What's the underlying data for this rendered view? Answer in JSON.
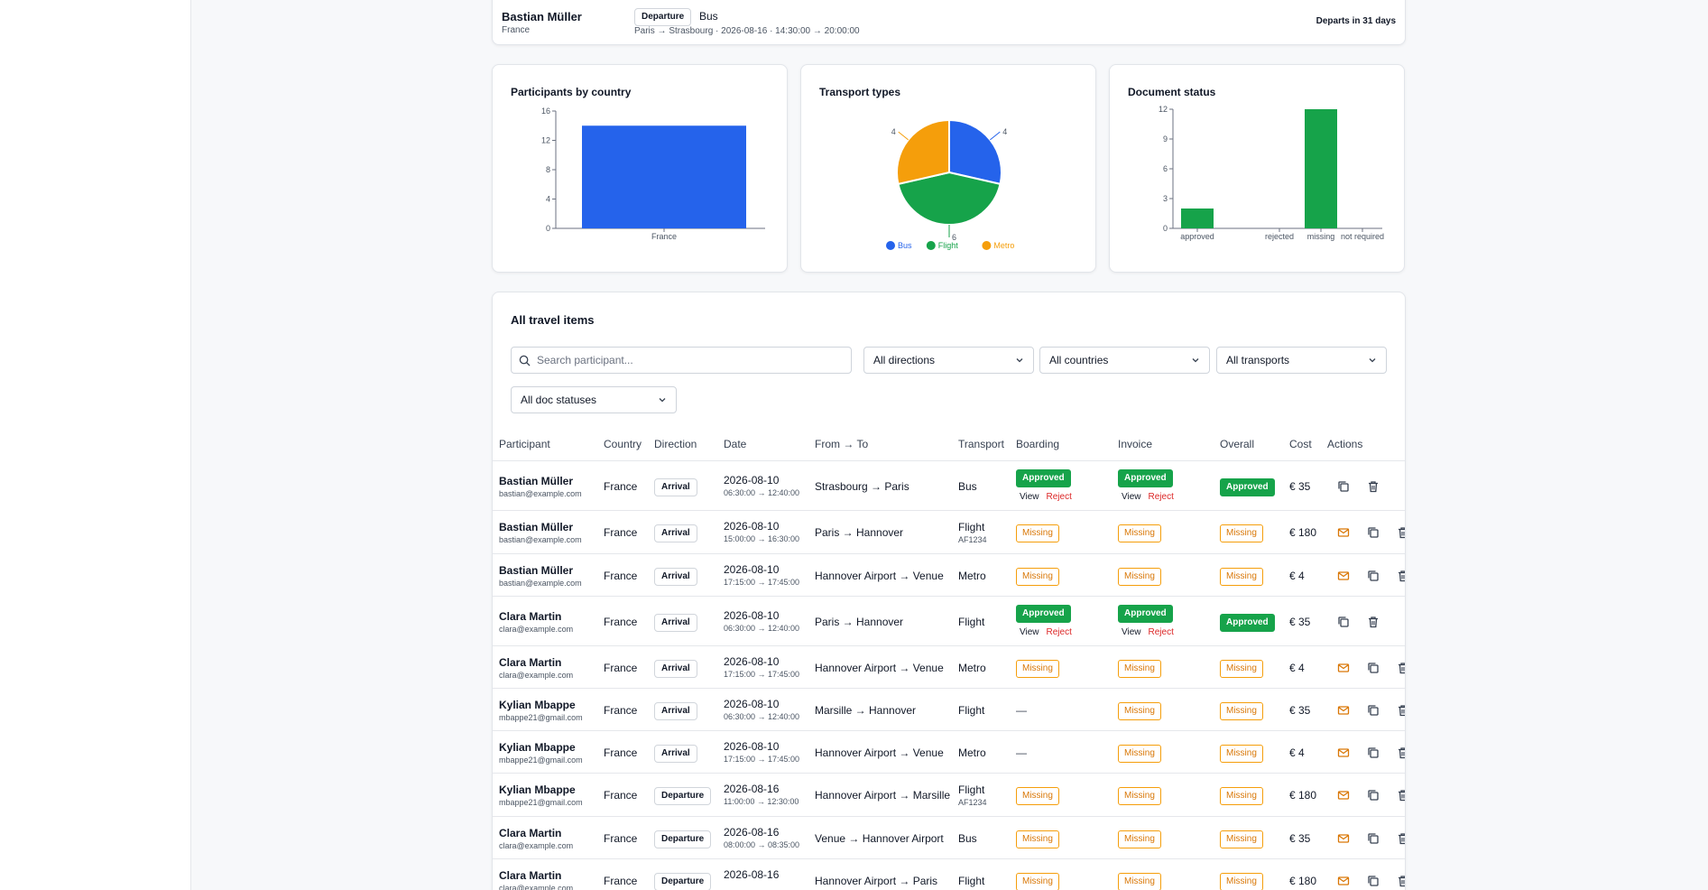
{
  "top_card": {
    "participant": "Bastian Müller",
    "country": "France",
    "direction": "Departure",
    "transport": "Bus",
    "route": "Paris → Strasbourg · 2026-08-16 · 14:30:00 → 20:00:00",
    "departs": "Departs in 31 days"
  },
  "charts": {
    "country": {
      "title": "Participants by country",
      "chart_data": {
        "type": "bar",
        "categories": [
          "France"
        ],
        "values": [
          14
        ],
        "ylim": [
          0,
          16
        ],
        "yticks": [
          "0",
          "4",
          "8",
          "12",
          "16"
        ],
        "color": "#2563eb"
      }
    },
    "transport": {
      "title": "Transport types",
      "chart_data": {
        "type": "pie",
        "series": [
          {
            "name": "Bus",
            "value": 4,
            "color": "#2563eb"
          },
          {
            "name": "Flight",
            "value": 6,
            "color": "#16a34a"
          },
          {
            "name": "Metro",
            "value": 4,
            "color": "#f59e0b"
          }
        ],
        "labels": [
          "4",
          "6",
          "4"
        ]
      }
    },
    "docs": {
      "title": "Document status",
      "chart_data": {
        "type": "bar",
        "categories": [
          "approved",
          "rejected",
          "missing",
          "not_required"
        ],
        "values": [
          2,
          0,
          12,
          0
        ],
        "ylim": [
          0,
          12
        ],
        "yticks": [
          "0",
          "3",
          "6",
          "9",
          "12"
        ],
        "color": "#16a34a"
      }
    }
  },
  "items": {
    "title": "All travel items",
    "search_placeholder": "Search participant...",
    "filters": {
      "directions": "All directions",
      "countries": "All countries",
      "transports": "All transports",
      "doc_statuses": "All doc statuses"
    },
    "columns": {
      "participant": "Participant",
      "country": "Country",
      "direction": "Direction",
      "date": "Date",
      "route": "From → To",
      "transport": "Transport",
      "boarding": "Boarding",
      "invoice": "Invoice",
      "overall": "Overall",
      "cost": "Cost",
      "actions": "Actions"
    },
    "view_label": "View",
    "reject_label": "Reject",
    "rows": [
      {
        "name": "Bastian Müller",
        "email": "bastian@example.com",
        "country": "France",
        "direction": "Arrival",
        "date": "2026-08-10",
        "time": "06:30:00 → 12:40:00",
        "route": "Strasbourg → Paris",
        "transport": "Bus",
        "code": "",
        "boarding": "Approved",
        "invoice": "Approved",
        "overall": "Approved",
        "cost": "€ 35"
      },
      {
        "name": "Bastian Müller",
        "email": "bastian@example.com",
        "country": "France",
        "direction": "Arrival",
        "date": "2026-08-10",
        "time": "15:00:00 → 16:30:00",
        "route": "Paris → Hannover",
        "transport": "Flight",
        "code": "AF1234",
        "boarding": "Missing",
        "invoice": "Missing",
        "overall": "Missing",
        "cost": "€ 180"
      },
      {
        "name": "Bastian Müller",
        "email": "bastian@example.com",
        "country": "France",
        "direction": "Arrival",
        "date": "2026-08-10",
        "time": "17:15:00 → 17:45:00",
        "route": "Hannover Airport → Venue",
        "transport": "Metro",
        "code": "",
        "boarding": "Missing",
        "invoice": "Missing",
        "overall": "Missing",
        "cost": "€ 4"
      },
      {
        "name": "Clara Martin",
        "email": "clara@example.com",
        "country": "France",
        "direction": "Arrival",
        "date": "2026-08-10",
        "time": "06:30:00 → 12:40:00",
        "route": "Paris → Hannover",
        "transport": "Flight",
        "code": "",
        "boarding": "Approved",
        "invoice": "Approved",
        "overall": "Approved",
        "cost": "€ 35"
      },
      {
        "name": "Clara Martin",
        "email": "clara@example.com",
        "country": "France",
        "direction": "Arrival",
        "date": "2026-08-10",
        "time": "17:15:00 → 17:45:00",
        "route": "Hannover Airport → Venue",
        "transport": "Metro",
        "code": "",
        "boarding": "Missing",
        "invoice": "Missing",
        "overall": "Missing",
        "cost": "€ 4"
      },
      {
        "name": "Kylian Mbappe",
        "email": "mbappe21@gmail.com",
        "country": "France",
        "direction": "Arrival",
        "date": "2026-08-10",
        "time": "06:30:00 → 12:40:00",
        "route": "Marsille → Hannover",
        "transport": "Flight",
        "code": "",
        "boarding": "—",
        "invoice": "Missing",
        "overall": "Missing",
        "cost": "€ 35"
      },
      {
        "name": "Kylian Mbappe",
        "email": "mbappe21@gmail.com",
        "country": "France",
        "direction": "Arrival",
        "date": "2026-08-10",
        "time": "17:15:00 → 17:45:00",
        "route": "Hannover Airport → Venue",
        "transport": "Metro",
        "code": "",
        "boarding": "—",
        "invoice": "Missing",
        "overall": "Missing",
        "cost": "€ 4"
      },
      {
        "name": "Kylian Mbappe",
        "email": "mbappe21@gmail.com",
        "country": "France",
        "direction": "Departure",
        "date": "2026-08-16",
        "time": "11:00:00 → 12:30:00",
        "route": "Hannover Airport → Marsille",
        "transport": "Flight",
        "code": "AF1234",
        "boarding": "Missing",
        "invoice": "Missing",
        "overall": "Missing",
        "cost": "€ 180"
      },
      {
        "name": "Clara Martin",
        "email": "clara@example.com",
        "country": "France",
        "direction": "Departure",
        "date": "2026-08-16",
        "time": "08:00:00 → 08:35:00",
        "route": "Venue → Hannover Airport",
        "transport": "Bus",
        "code": "",
        "boarding": "Missing",
        "invoice": "Missing",
        "overall": "Missing",
        "cost": "€ 35"
      },
      {
        "name": "Clara Martin",
        "email": "clara@example.com",
        "country": "France",
        "direction": "Departure",
        "date": "2026-08-16",
        "time": "",
        "route": "Hannover Airport → Paris",
        "transport": "Flight",
        "code": "",
        "boarding": "Missing",
        "invoice": "Missing",
        "overall": "Missing",
        "cost": "€ 180"
      }
    ]
  }
}
